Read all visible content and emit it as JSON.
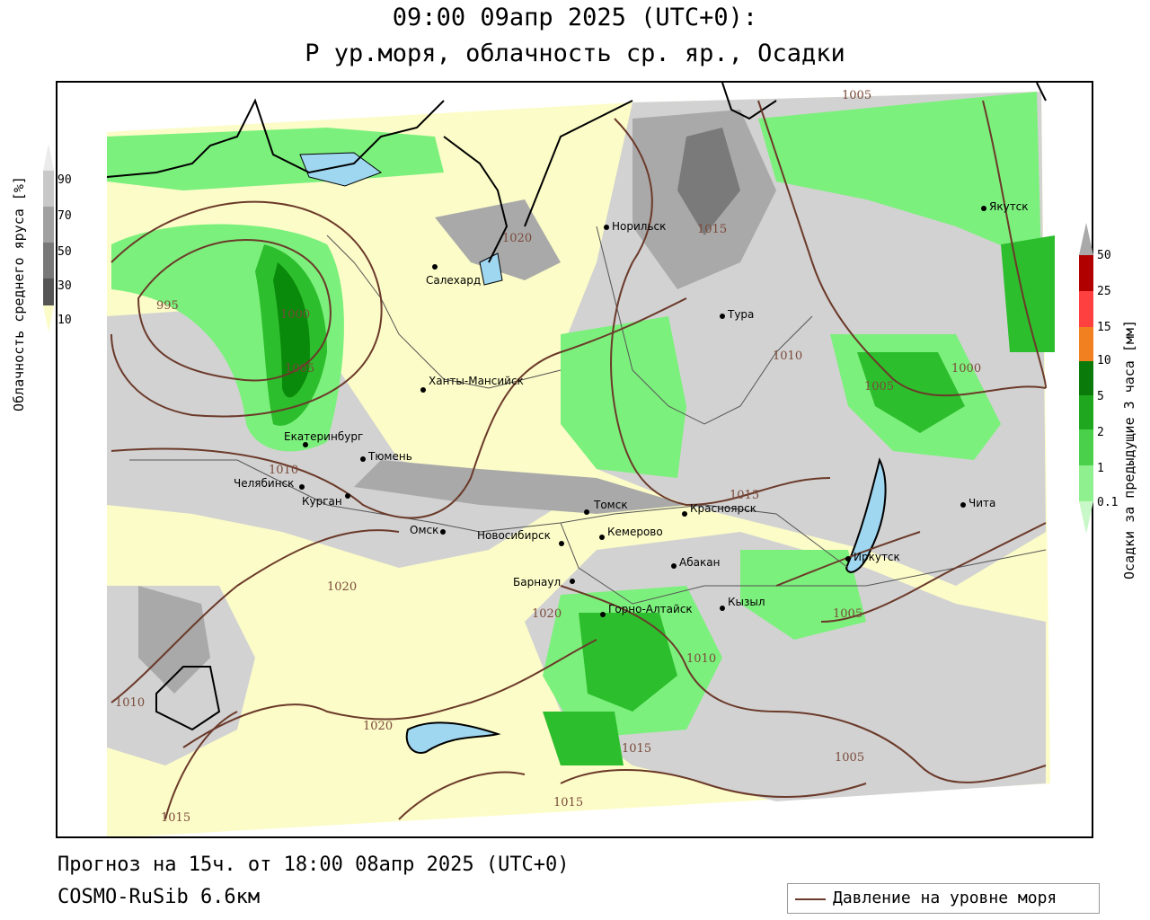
{
  "title_line1": "09:00 09апр 2025 (UTC+0):",
  "title_line2": "P ур.моря, облачность ср. яр., Осадки",
  "forecast_line": "Прогноз на 15ч. от 18:00 08апр 2025 (UTC+0)",
  "model_line": "COSMO-RuSib 6.6км",
  "legend_pressure": "Давление на уровне моря",
  "cloud_scale": {
    "label": "Облачность среднего яруса [%]",
    "ticks": [
      "90",
      "70",
      "50",
      "30",
      "10"
    ]
  },
  "precip_scale": {
    "label": "Осадки за предыдущие 3 часа [мм]",
    "ticks": [
      "50",
      "25",
      "15",
      "10",
      "5",
      "2",
      "1",
      "0.1"
    ]
  },
  "cities": [
    {
      "name": "Норильск"
    },
    {
      "name": "Якутск"
    },
    {
      "name": "Салехард"
    },
    {
      "name": "Тура"
    },
    {
      "name": "Ханты-Мансийск"
    },
    {
      "name": "Екатеринбург"
    },
    {
      "name": "Тюмень"
    },
    {
      "name": "Челябинск"
    },
    {
      "name": "Курган"
    },
    {
      "name": "Омск"
    },
    {
      "name": "Новосибирск"
    },
    {
      "name": "Томск"
    },
    {
      "name": "Красноярск"
    },
    {
      "name": "Кемерово"
    },
    {
      "name": "Абакан"
    },
    {
      "name": "Барнаул"
    },
    {
      "name": "Горно-Алтайск"
    },
    {
      "name": "Кызыл"
    },
    {
      "name": "Иркутск"
    },
    {
      "name": "Чита"
    }
  ],
  "isobar_labels": [
    "1005",
    "1015",
    "1020",
    "995",
    "1000",
    "1005",
    "1010",
    "1010",
    "1005",
    "1000",
    "1015",
    "1020",
    "1020",
    "1005",
    "1010",
    "1010",
    "1020",
    "1015",
    "1005",
    "1015",
    "1015"
  ],
  "colors": {
    "land_yellow": "#fcfcc8",
    "cloud_light": "#d2d2d2",
    "cloud_mid": "#a9a9a9",
    "cloud_dark": "#7a7a7a",
    "precip_light": "#7cf07c",
    "precip_mid": "#2dbe2d",
    "precip_dark": "#0a8a0a",
    "water": "#9fd6f0",
    "isobar": "#6b3a2a"
  }
}
